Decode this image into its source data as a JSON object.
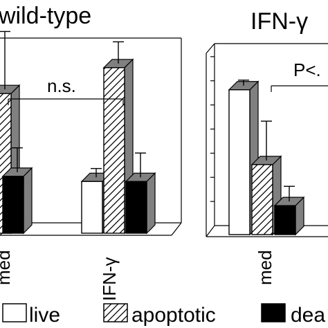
{
  "chart_data": [
    {
      "type": "bar",
      "title": "wild-type",
      "categories": [
        "med",
        "IFN-γ"
      ],
      "series": [
        {
          "name": "live",
          "values": [
            null,
            20
          ]
        },
        {
          "name": "apoptotic",
          "values": [
            54,
            64
          ]
        },
        {
          "name": "dead",
          "values": [
            22,
            20
          ]
        }
      ],
      "error_bars": {
        "live": [
          null,
          5
        ],
        "apoptotic": [
          24,
          10
        ],
        "dead": [
          11,
          11
        ]
      },
      "annotation": "n.s.",
      "ylim": [
        0,
        80
      ],
      "grid": false
    },
    {
      "type": "bar",
      "title": "IFN-γ",
      "categories": [
        "med"
      ],
      "series": [
        {
          "name": "live",
          "values": [
            60
          ]
        },
        {
          "name": "apoptotic",
          "values": [
            29
          ]
        },
        {
          "name": "dead",
          "values": [
            12
          ]
        }
      ],
      "error_bars": {
        "live": [
          4
        ],
        "apoptotic": [
          18
        ],
        "dead": [
          8
        ]
      },
      "annotation": "P<.",
      "ylim": [
        0,
        80
      ],
      "grid": false
    }
  ],
  "legend": {
    "placement": "bottom",
    "items": [
      {
        "label": "live",
        "fill": "#ffffff"
      },
      {
        "label": "apoptotic",
        "fill": "hatch"
      },
      {
        "label": "dea",
        "fill": "#000000"
      }
    ]
  },
  "colors": {
    "live": "#ffffff",
    "apoptotic_face": "#ffffff",
    "side": "#808080",
    "dead": "#000000",
    "stroke": "#000000"
  }
}
